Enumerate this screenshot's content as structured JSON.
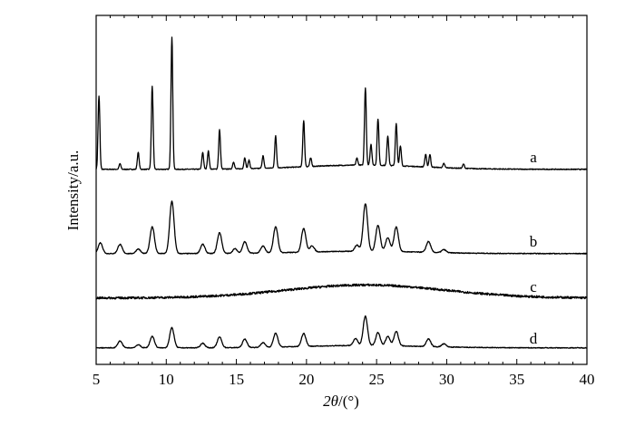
{
  "chart_data": {
    "type": "line",
    "xlabel_symbol": "2θ",
    "xlabel_unit": "/(°)",
    "ylabel": "Intensity/a.u.",
    "xlim": [
      5,
      40
    ],
    "x_ticks": [
      "5",
      "10",
      "15",
      "20",
      "25",
      "30",
      "35",
      "40"
    ],
    "series_labels": [
      "a",
      "b",
      "c",
      "d"
    ],
    "series": [
      {
        "name": "a",
        "baseline": 0.04,
        "peaks": [
          {
            "x": 5.2,
            "h": 0.52
          },
          {
            "x": 6.7,
            "h": 0.04
          },
          {
            "x": 8.0,
            "h": 0.12
          },
          {
            "x": 9.0,
            "h": 0.59
          },
          {
            "x": 10.4,
            "h": 0.94
          },
          {
            "x": 12.6,
            "h": 0.12
          },
          {
            "x": 13.0,
            "h": 0.13
          },
          {
            "x": 13.8,
            "h": 0.28
          },
          {
            "x": 14.8,
            "h": 0.05
          },
          {
            "x": 15.6,
            "h": 0.08
          },
          {
            "x": 15.9,
            "h": 0.06
          },
          {
            "x": 16.9,
            "h": 0.09
          },
          {
            "x": 17.8,
            "h": 0.23
          },
          {
            "x": 19.8,
            "h": 0.33
          },
          {
            "x": 20.3,
            "h": 0.06
          },
          {
            "x": 23.6,
            "h": 0.05
          },
          {
            "x": 24.2,
            "h": 0.55
          },
          {
            "x": 24.6,
            "h": 0.15
          },
          {
            "x": 25.1,
            "h": 0.33
          },
          {
            "x": 25.8,
            "h": 0.21
          },
          {
            "x": 26.4,
            "h": 0.3
          },
          {
            "x": 26.7,
            "h": 0.14
          },
          {
            "x": 28.5,
            "h": 0.09
          },
          {
            "x": 28.8,
            "h": 0.09
          },
          {
            "x": 29.8,
            "h": 0.03
          },
          {
            "x": 31.2,
            "h": 0.03
          }
        ]
      },
      {
        "name": "b",
        "baseline": 0.05,
        "peaks": [
          {
            "x": 5.3,
            "h": 0.14
          },
          {
            "x": 6.7,
            "h": 0.12
          },
          {
            "x": 8.0,
            "h": 0.06
          },
          {
            "x": 9.0,
            "h": 0.35
          },
          {
            "x": 10.4,
            "h": 0.68
          },
          {
            "x": 12.6,
            "h": 0.12
          },
          {
            "x": 13.8,
            "h": 0.27
          },
          {
            "x": 14.9,
            "h": 0.06
          },
          {
            "x": 15.6,
            "h": 0.15
          },
          {
            "x": 16.9,
            "h": 0.09
          },
          {
            "x": 17.8,
            "h": 0.34
          },
          {
            "x": 19.8,
            "h": 0.31
          },
          {
            "x": 20.4,
            "h": 0.08
          },
          {
            "x": 23.6,
            "h": 0.08
          },
          {
            "x": 24.2,
            "h": 0.62
          },
          {
            "x": 25.1,
            "h": 0.34
          },
          {
            "x": 25.8,
            "h": 0.18
          },
          {
            "x": 26.4,
            "h": 0.32
          },
          {
            "x": 28.7,
            "h": 0.14
          },
          {
            "x": 29.8,
            "h": 0.04
          }
        ]
      },
      {
        "name": "c",
        "baseline": 0.04,
        "peaks": [
          {
            "x": 24.2,
            "h": 0.18,
            "w": 8.0
          }
        ]
      },
      {
        "name": "d",
        "baseline": 0.05,
        "peaks": [
          {
            "x": 6.7,
            "h": 0.09
          },
          {
            "x": 8.0,
            "h": 0.04
          },
          {
            "x": 9.0,
            "h": 0.15
          },
          {
            "x": 10.4,
            "h": 0.26
          },
          {
            "x": 12.6,
            "h": 0.06
          },
          {
            "x": 13.8,
            "h": 0.14
          },
          {
            "x": 15.6,
            "h": 0.11
          },
          {
            "x": 16.9,
            "h": 0.06
          },
          {
            "x": 17.8,
            "h": 0.18
          },
          {
            "x": 19.8,
            "h": 0.17
          },
          {
            "x": 23.5,
            "h": 0.09
          },
          {
            "x": 24.2,
            "h": 0.38
          },
          {
            "x": 25.1,
            "h": 0.17
          },
          {
            "x": 25.8,
            "h": 0.12
          },
          {
            "x": 26.4,
            "h": 0.19
          },
          {
            "x": 28.7,
            "h": 0.1
          },
          {
            "x": 29.8,
            "h": 0.04
          }
        ]
      }
    ],
    "grid": false,
    "legend": "labels at right end of each trace"
  }
}
